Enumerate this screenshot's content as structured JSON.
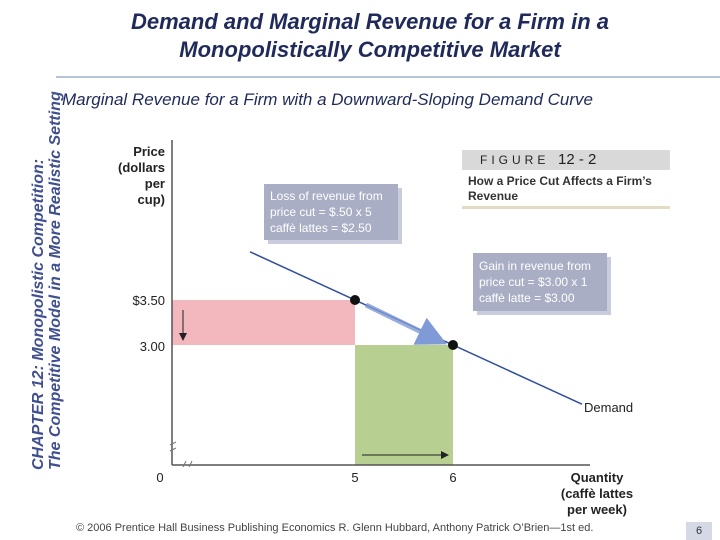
{
  "sidebar": {
    "line1": "CHAPTER 12: Monopolistic Competition:",
    "line2": "The Competitive Model in a More Realistic Setting"
  },
  "title": "Demand and Marginal Revenue for a Firm in a Monopolistically Competitive Market",
  "subtitle": "Marginal Revenue for a Firm with a Downward-Sloping Demand Curve",
  "figure": {
    "word": "FIGURE",
    "number": "12 - 2",
    "caption": "How a Price Cut Affects a Firm’s Revenue"
  },
  "chart_data": {
    "type": "line",
    "ylabel": "Price (dollars per cup)",
    "xlabel": "Quantity (caffè lattes per week)",
    "y_tick_labels": [
      "$3.50",
      "3.00"
    ],
    "x_tick_labels": [
      "0",
      "5",
      "6"
    ],
    "points": [
      {
        "x": 5,
        "y": 3.5
      },
      {
        "x": 6,
        "y": 3.0
      }
    ],
    "demand_label": "Demand",
    "loss_box": {
      "label": "Loss of revenue from price cut",
      "line1": "Loss of revenue from",
      "line2": "price cut = $.50 x 5",
      "line3": "caffè lattes = $2.50",
      "value": 2.5
    },
    "gain_box": {
      "label": "Gain in revenue from price cut",
      "line1": "Gain in revenue from",
      "line2": "price cut = $3.00 x 1",
      "line3": "caffè latte = $3.00",
      "value": 3.0
    },
    "colors": {
      "loss": "#f2b8bd",
      "gain": "#b7cf90",
      "demand": "#2f4f9f",
      "callout": "#a9aec5",
      "arrow": "#7f9ad6"
    }
  },
  "footer": {
    "text": "© 2006 Prentice Hall Business Publishing   Economics  R. Glenn Hubbard, Anthony Patrick O’Brien—1st ed.",
    "page": "6"
  }
}
